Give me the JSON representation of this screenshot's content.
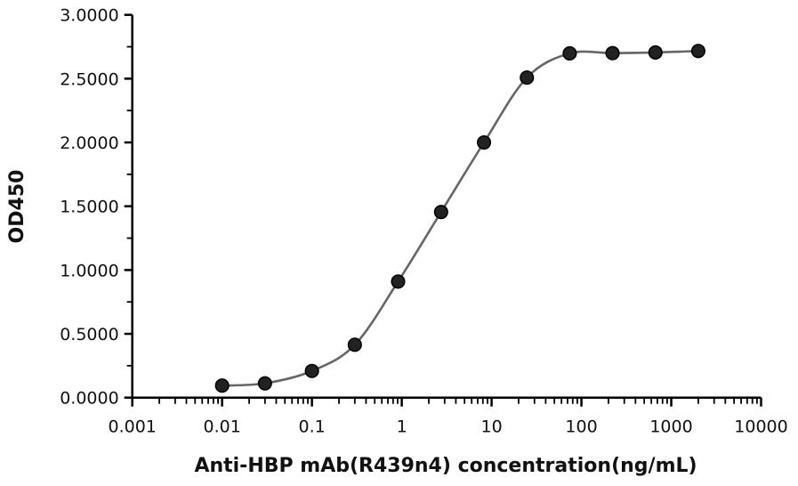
{
  "chart_data": {
    "type": "scatter",
    "title": "",
    "xlabel": "Anti-HBP mAb(R439n4) concentration(ng/mL)",
    "ylabel": "OD450",
    "xscale": "log",
    "xlim": [
      0.001,
      10000
    ],
    "ylim": [
      0,
      3
    ],
    "xticks": [
      "0.001",
      "0.01",
      "0.1",
      "1",
      "10",
      "100",
      "1000",
      "10000"
    ],
    "yticks": [
      "0.0000",
      "0.5000",
      "1.0000",
      "1.5000",
      "2.0000",
      "2.5000",
      "3.0000"
    ],
    "grid": false,
    "series": [
      {
        "x": [
          0.01,
          0.03,
          0.1,
          0.3,
          0.91,
          2.74,
          8.23,
          24.7,
          74.1,
          222,
          667,
          2000
        ],
        "y": [
          0.094,
          0.112,
          0.209,
          0.414,
          0.91,
          1.455,
          2.0,
          2.508,
          2.698,
          2.7,
          2.705,
          2.717
        ],
        "fit": "smooth sigmoidal curve"
      }
    ],
    "colors": {
      "marker": "#222222",
      "curve": "#666666",
      "axis": "#000000"
    }
  }
}
